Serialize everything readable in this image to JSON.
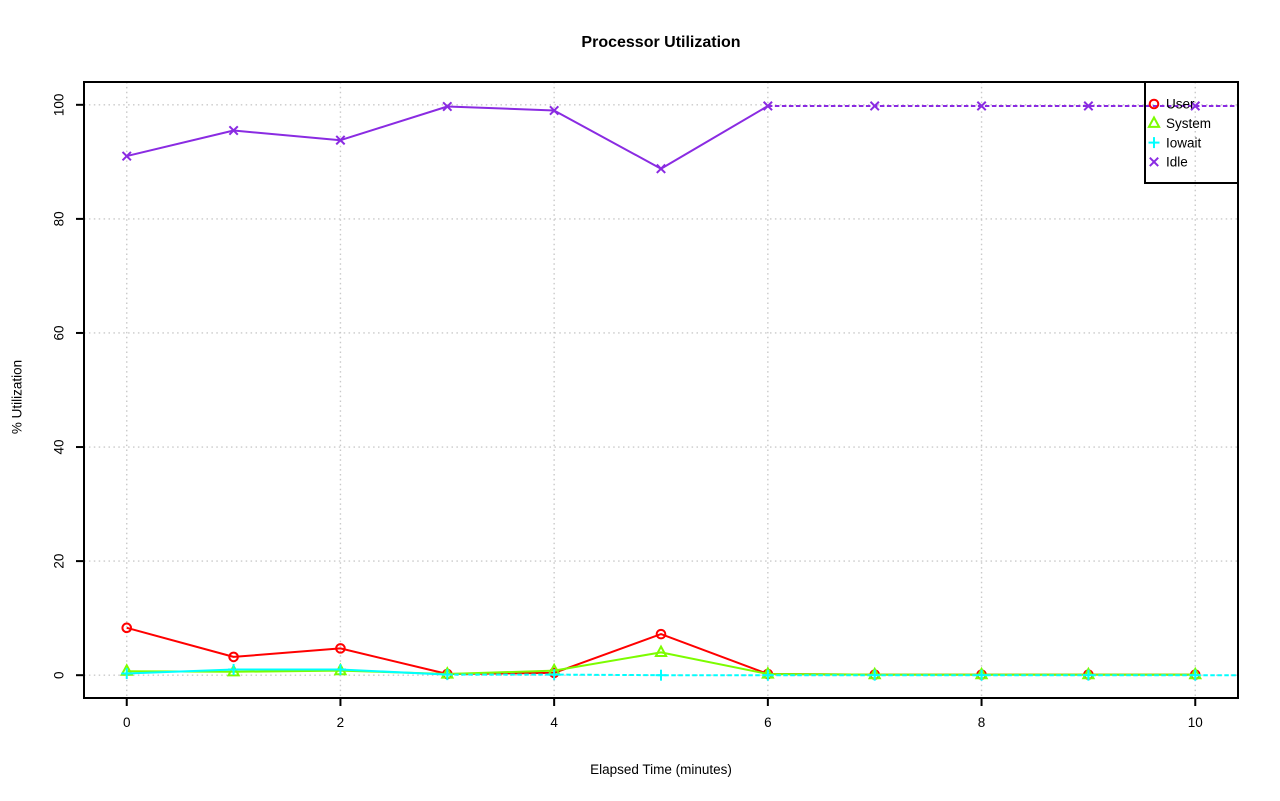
{
  "chart_data": {
    "type": "line",
    "title": "Processor Utilization",
    "xlabel": "Elapsed Time (minutes)",
    "ylabel": "% Utilization",
    "x": [
      0,
      1,
      2,
      3,
      4,
      5,
      6,
      7,
      8,
      9,
      10
    ],
    "x_ticks": [
      0,
      2,
      4,
      6,
      8,
      10
    ],
    "y_ticks": [
      0,
      20,
      40,
      60,
      80,
      100
    ],
    "xlim": [
      -0.4,
      10.4
    ],
    "ylim": [
      -4,
      104
    ],
    "grid": {
      "style": "dotted",
      "color": "#c9c9c9"
    },
    "legend": {
      "position": "top-right",
      "border_color": "#000000",
      "entries": [
        "User",
        "System",
        "Iowait",
        "Idle"
      ]
    },
    "series": [
      {
        "name": "User",
        "color": "#ff0000",
        "marker": "circle",
        "line": "solid",
        "values": [
          8.3,
          3.2,
          4.7,
          0.2,
          0.4,
          7.2,
          0.2,
          0.1,
          0.1,
          0.1,
          0.1
        ]
      },
      {
        "name": "System",
        "color": "#7cfc00",
        "marker": "triangle",
        "line": "solid",
        "values": [
          0.7,
          0.6,
          0.8,
          0.2,
          0.8,
          4.0,
          0.2,
          0.1,
          0.1,
          0.1,
          0.1
        ]
      },
      {
        "name": "Iowait",
        "color": "#00ffff",
        "marker": "plus",
        "line": "solid-then-dashed",
        "dash_from": 3,
        "extend_right": true,
        "values": [
          0.3,
          1.0,
          1.0,
          0.1,
          0.1,
          0.0,
          0.0,
          0.0,
          0.0,
          0.0,
          0.0
        ]
      },
      {
        "name": "Idle",
        "color": "#8a2be2",
        "marker": "x",
        "line": "solid-then-dashed",
        "dash_from": 6,
        "extend_right": true,
        "values": [
          91.0,
          95.5,
          93.8,
          99.7,
          99.0,
          88.8,
          99.8,
          99.8,
          99.8,
          99.8,
          99.8
        ]
      }
    ]
  }
}
